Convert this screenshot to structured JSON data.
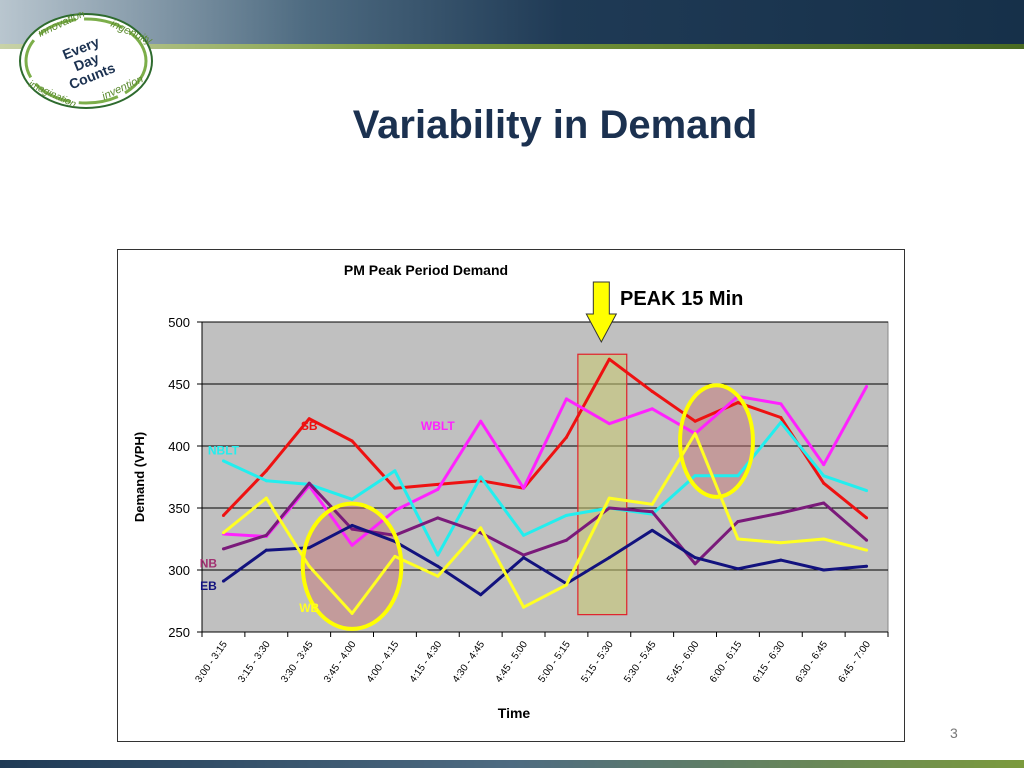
{
  "slide": {
    "title": "Variability in Demand",
    "page_number": "3",
    "peak_label": "PEAK 15 Min",
    "logo": {
      "center": "Every Day Counts",
      "words": [
        "innovation",
        "ingenuity",
        "imagination",
        "invention"
      ]
    }
  },
  "colors": {
    "title": "#1b3150",
    "plot_bg": "#c0c0c0",
    "highlight_ellipse": "#ffff00",
    "peak_box": "#e0202a",
    "arrow": "#ffff00"
  },
  "chart_data": {
    "type": "line",
    "title": "PM Peak Period Demand",
    "xlabel": "Time",
    "ylabel": "Demand (VPH)",
    "ylim": [
      250,
      500
    ],
    "yticks": [
      250,
      300,
      350,
      400,
      450,
      500
    ],
    "grid": true,
    "categories": [
      "3:00 - 3:15",
      "3:15 - 3:30",
      "3:30 - 3:45",
      "3:45 - 4:00",
      "4:00 - 4:15",
      "4:15 - 4:30",
      "4:30 - 4:45",
      "4:45 - 5:00",
      "5:00 - 5:15",
      "5:15 - 5:30",
      "5:30 - 5:45",
      "5:45 - 6:00",
      "6:00 - 6:15",
      "6:15 - 6:30",
      "6:30 - 6:45",
      "6:45 - 7:00"
    ],
    "series": [
      {
        "name": "SB",
        "color": "#ee1111",
        "values": [
          344,
          380,
          422,
          404,
          366,
          369,
          372,
          366,
          407,
          470,
          444,
          420,
          435,
          423,
          370,
          342
        ]
      },
      {
        "name": "WBLT",
        "color": "#ff22ff",
        "values": [
          329,
          327,
          368,
          320,
          348,
          365,
          420,
          366,
          438,
          418,
          430,
          410,
          440,
          434,
          385,
          448
        ]
      },
      {
        "name": "NBLT",
        "color": "#22eeee",
        "values": [
          388,
          372,
          369,
          357,
          380,
          312,
          375,
          328,
          344,
          350,
          345,
          376,
          376,
          419,
          376,
          364
        ]
      },
      {
        "name": "NB",
        "color": "#7a1a7a",
        "values": [
          317,
          328,
          370,
          333,
          328,
          342,
          330,
          312,
          324,
          350,
          347,
          305,
          339,
          346,
          354,
          324
        ]
      },
      {
        "name": "EB",
        "color": "#12127e",
        "values": [
          291,
          316,
          318,
          336,
          323,
          303,
          280,
          310,
          289,
          310,
          332,
          310,
          301,
          308,
          300,
          303
        ]
      },
      {
        "name": "WB",
        "color": "#ffff22",
        "values": [
          330,
          358,
          303,
          265,
          311,
          295,
          334,
          270,
          288,
          358,
          353,
          410,
          325,
          322,
          325,
          316
        ]
      }
    ],
    "series_labels": [
      {
        "series": "SB",
        "text": "SB",
        "color": "#ee1111",
        "at_category": 2,
        "at_value": 413
      },
      {
        "series": "WBLT",
        "text": "WBLT",
        "color": "#ff22ff",
        "at_category": 5,
        "at_value": 413
      },
      {
        "series": "NBLT",
        "text": "NBLT",
        "color": "#22eeee",
        "at_category": 0,
        "at_value": 393
      },
      {
        "series": "NB",
        "text": "NB",
        "color": "#a03070",
        "at_category": -0.35,
        "at_value": 302
      },
      {
        "series": "EB",
        "text": "EB",
        "color": "#12127e",
        "at_category": -0.35,
        "at_value": 284
      },
      {
        "series": "WB",
        "text": "WB",
        "color": "#ffff22",
        "at_category": 2,
        "at_value": 266
      }
    ],
    "peak_interval": "5:15 - 5:30",
    "highlight_ellipses": [
      {
        "center_category": 3,
        "center_value": 303,
        "span_categories": 2.3,
        "span_values": 101
      },
      {
        "center_category": 11.5,
        "center_value": 404,
        "span_categories": 1.7,
        "span_values": 90
      }
    ]
  }
}
